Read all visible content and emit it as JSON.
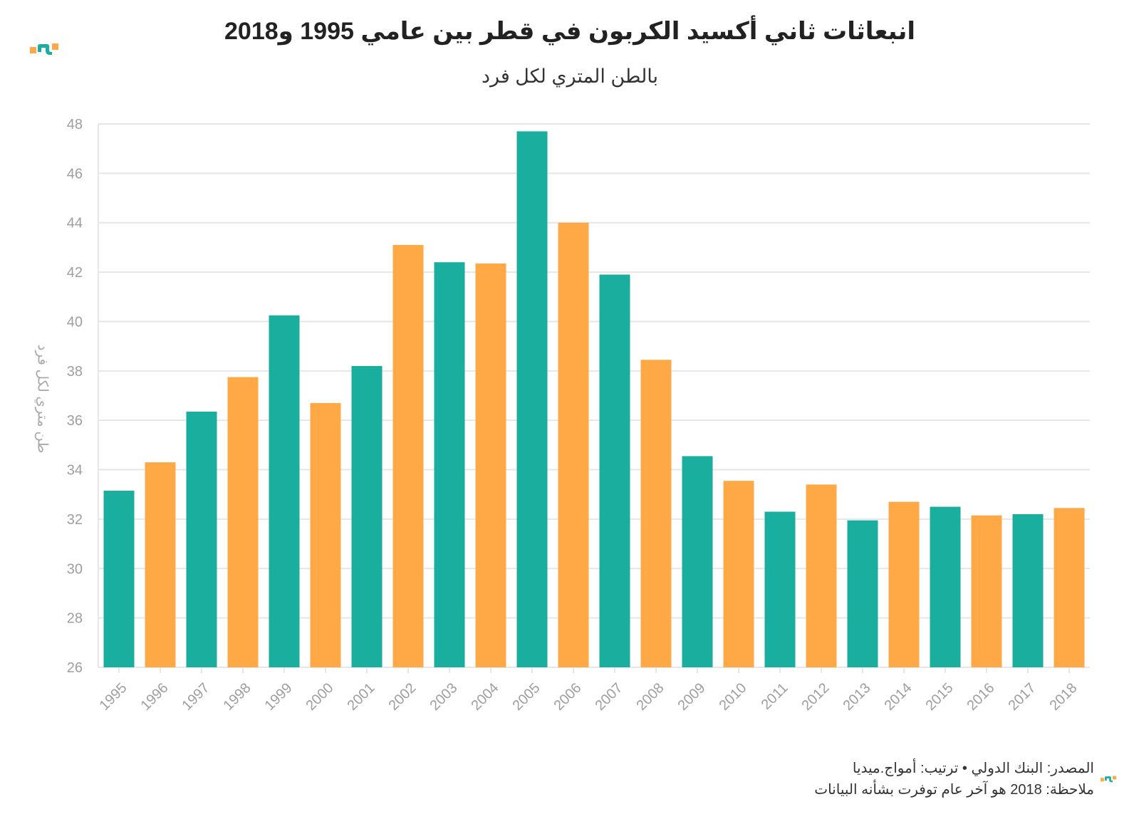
{
  "title": "انبعاثات ثاني أكسيد الكربون في قطر بين عامي 1995 و2018",
  "subtitle": "بالطن المتري لكل فرد",
  "footer": {
    "source": "المصدر: البنك الدولي • ترتيب: أمواج.ميديا",
    "note": "ملاحظة: 2018 هو آخر عام توفرت بشأنه البيانات"
  },
  "colors": {
    "teal": "#1aae9f",
    "orange": "#fea946",
    "grid": "#e6e6e6",
    "tick": "#9e9e9e"
  },
  "logo_icon": "brand-logo-icon",
  "chart_data": {
    "type": "bar",
    "title": "انبعاثات ثاني أكسيد الكربون في قطر بين عامي 1995 و2018",
    "subtitle": "بالطن المتري لكل فرد",
    "xlabel": "",
    "ylabel": "طن متري لكل فرد",
    "ylim": [
      26,
      48
    ],
    "yticks": [
      26,
      28,
      30,
      32,
      34,
      36,
      38,
      40,
      42,
      44,
      46,
      48
    ],
    "grid": true,
    "categories": [
      "1995",
      "1996",
      "1997",
      "1998",
      "1999",
      "2000",
      "2001",
      "2002",
      "2003",
      "2004",
      "2005",
      "2006",
      "2007",
      "2008",
      "2009",
      "2010",
      "2011",
      "2012",
      "2013",
      "2014",
      "2015",
      "2016",
      "2017",
      "2018"
    ],
    "values": [
      33.15,
      34.3,
      36.35,
      37.75,
      40.25,
      36.7,
      38.2,
      43.1,
      42.4,
      42.35,
      47.7,
      44.0,
      41.9,
      38.45,
      34.55,
      33.55,
      32.3,
      33.4,
      31.95,
      32.7,
      32.5,
      32.15,
      32.2,
      32.45
    ],
    "bar_colors": [
      "teal",
      "orange",
      "teal",
      "orange",
      "teal",
      "orange",
      "teal",
      "orange",
      "teal",
      "orange",
      "teal",
      "orange",
      "teal",
      "orange",
      "teal",
      "orange",
      "teal",
      "orange",
      "teal",
      "orange",
      "teal",
      "orange",
      "teal",
      "orange"
    ]
  }
}
